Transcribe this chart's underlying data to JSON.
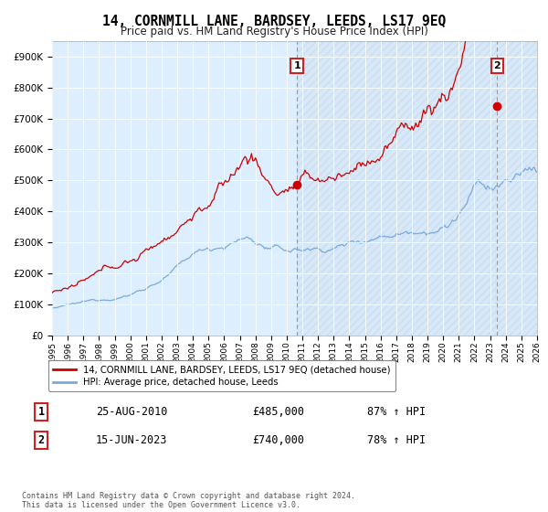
{
  "title": "14, CORNMILL LANE, BARDSEY, LEEDS, LS17 9EQ",
  "subtitle": "Price paid vs. HM Land Registry's House Price Index (HPI)",
  "red_label": "14, CORNMILL LANE, BARDSEY, LEEDS, LS17 9EQ (detached house)",
  "blue_label": "HPI: Average price, detached house, Leeds",
  "annotation1_label": "1",
  "annotation1_date": "25-AUG-2010",
  "annotation1_price": "£485,000",
  "annotation1_hpi": "87% ↑ HPI",
  "annotation2_label": "2",
  "annotation2_date": "15-JUN-2023",
  "annotation2_price": "£740,000",
  "annotation2_hpi": "78% ↑ HPI",
  "footer": "Contains HM Land Registry data © Crown copyright and database right 2024.\nThis data is licensed under the Open Government Licence v3.0.",
  "red_color": "#cc0000",
  "blue_color": "#7aaadd",
  "background_chart": "#ddeeff",
  "grid_color": "#ffffff",
  "fig_bg": "#ffffff",
  "ylim": [
    0,
    950000
  ],
  "yticks": [
    0,
    100000,
    200000,
    300000,
    400000,
    500000,
    600000,
    700000,
    800000,
    900000
  ],
  "ytick_labels": [
    "£0",
    "£100K",
    "£200K",
    "£300K",
    "£400K",
    "£500K",
    "£600K",
    "£700K",
    "£800K",
    "£900K"
  ],
  "sale1_year": 2010.65,
  "sale1_value": 485000,
  "sale2_year": 2023.46,
  "sale2_value": 740000,
  "xmin": 1995,
  "xmax": 2026
}
